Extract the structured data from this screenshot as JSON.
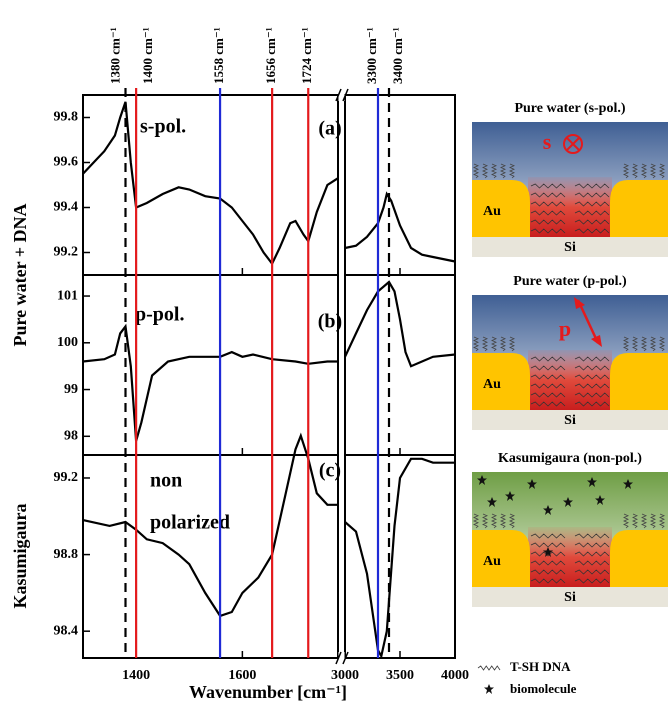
{
  "figure": {
    "x_label": "Wavenumber [cm⁻¹]",
    "y_label_top": "Pure water + DNA",
    "y_label_bottom": "Kasumigaura",
    "x_segments": [
      {
        "xlim": [
          1300,
          1780
        ],
        "xticks": [
          1400,
          1600
        ]
      },
      {
        "xlim": [
          3000,
          4000
        ],
        "xticks": [
          3000,
          3500,
          4000
        ]
      }
    ],
    "reference_lines": [
      {
        "value": 1380,
        "label": "1380 cm⁻¹",
        "color": "#000000",
        "dashed": true
      },
      {
        "value": 1400,
        "label": "1400 cm⁻¹",
        "color": "#e41a1c",
        "dashed": false
      },
      {
        "value": 1558,
        "label": "1558 cm⁻¹",
        "color": "#1f2ad6",
        "dashed": false
      },
      {
        "value": 1656,
        "label": "1656 cm⁻¹",
        "color": "#e41a1c",
        "dashed": false
      },
      {
        "value": 1724,
        "label": "1724 cm⁻¹",
        "color": "#e41a1c",
        "dashed": false
      },
      {
        "value": 3300,
        "label": "3300 cm⁻¹",
        "color": "#1f2ad6",
        "dashed": false
      },
      {
        "value": 3400,
        "label": "3400 cm⁻¹",
        "color": "#000000",
        "dashed": true
      }
    ]
  },
  "chart_data": [
    {
      "type": "line",
      "panel_label": "(a)",
      "annotation": [
        "s-pol."
      ],
      "color": "#000000",
      "ylim": [
        99.1,
        99.9
      ],
      "yticks": [
        99.2,
        99.4,
        99.6,
        99.8
      ],
      "segments": [
        {
          "x": [
            1300,
            1320,
            1340,
            1360,
            1370,
            1380,
            1390,
            1400,
            1420,
            1450,
            1480,
            1500,
            1530,
            1558,
            1580,
            1600,
            1620,
            1640,
            1656,
            1670,
            1690,
            1700,
            1715,
            1724,
            1740,
            1760,
            1780
          ],
          "values": [
            99.55,
            99.6,
            99.65,
            99.72,
            99.8,
            99.87,
            99.6,
            99.4,
            99.42,
            99.46,
            99.49,
            99.48,
            99.45,
            99.44,
            99.4,
            99.34,
            99.28,
            99.2,
            99.15,
            99.22,
            99.33,
            99.34,
            99.28,
            99.25,
            99.38,
            99.5,
            99.53
          ]
        },
        {
          "x": [
            3000,
            3100,
            3200,
            3300,
            3350,
            3380,
            3420,
            3500,
            3600,
            3700,
            3800,
            4000
          ],
          "values": [
            99.22,
            99.23,
            99.27,
            99.33,
            99.4,
            99.46,
            99.43,
            99.32,
            99.22,
            99.19,
            99.18,
            99.16
          ]
        }
      ]
    },
    {
      "type": "line",
      "panel_label": "(b)",
      "annotation": [
        "p-pol."
      ],
      "color": "#000000",
      "ylim": [
        97.6,
        101.45
      ],
      "yticks": [
        98,
        99,
        100,
        101
      ],
      "segments": [
        {
          "x": [
            1300,
            1340,
            1360,
            1370,
            1380,
            1390,
            1400,
            1410,
            1430,
            1460,
            1500,
            1558,
            1580,
            1600,
            1620,
            1656,
            1700,
            1724,
            1760,
            1780
          ],
          "values": [
            99.6,
            99.65,
            99.75,
            100.2,
            100.35,
            99.5,
            97.9,
            98.3,
            99.3,
            99.6,
            99.7,
            99.7,
            99.8,
            99.7,
            99.75,
            99.65,
            99.6,
            99.55,
            99.6,
            99.6
          ]
        },
        {
          "x": [
            3000,
            3100,
            3200,
            3300,
            3400,
            3450,
            3500,
            3550,
            3600,
            3700,
            3800,
            4000
          ],
          "values": [
            99.7,
            100.2,
            100.7,
            101.1,
            101.3,
            101.1,
            100.5,
            99.8,
            99.5,
            99.6,
            99.7,
            99.75
          ]
        }
      ]
    },
    {
      "type": "line",
      "panel_label": "(c)",
      "annotation": [
        "non",
        "polarized"
      ],
      "color": "#000000",
      "ylim": [
        98.26,
        99.32
      ],
      "yticks": [
        98.4,
        98.8,
        99.2
      ],
      "segments": [
        {
          "x": [
            1300,
            1350,
            1380,
            1400,
            1420,
            1450,
            1480,
            1500,
            1530,
            1558,
            1580,
            1600,
            1630,
            1656,
            1680,
            1700,
            1710,
            1724,
            1740,
            1760,
            1780
          ],
          "values": [
            98.98,
            98.95,
            98.97,
            98.93,
            98.88,
            98.86,
            98.8,
            98.75,
            98.6,
            98.48,
            98.5,
            98.6,
            98.68,
            98.8,
            99.1,
            99.35,
            99.42,
            99.3,
            99.12,
            99.06,
            99.06
          ]
        },
        {
          "x": [
            3000,
            3100,
            3200,
            3250,
            3300,
            3330,
            3380,
            3450,
            3500,
            3600,
            3700,
            3800,
            4000
          ],
          "values": [
            98.97,
            98.92,
            98.7,
            98.5,
            98.3,
            98.27,
            98.4,
            98.95,
            99.2,
            99.3,
            99.3,
            99.28,
            99.28
          ]
        }
      ]
    }
  ],
  "schematics": {
    "panels": [
      {
        "title": "Pure water (s-pol.)",
        "polarization": "s",
        "substrate": "Au",
        "base": "Si"
      },
      {
        "title": "Pure water (p-pol.)",
        "polarization": "p",
        "substrate": "Au",
        "base": "Si"
      },
      {
        "title": "Kasumigaura (non-pol.)",
        "substrate": "Au",
        "base": "Si"
      }
    ],
    "legend": [
      "T-SH DNA",
      "biomolecule"
    ]
  }
}
